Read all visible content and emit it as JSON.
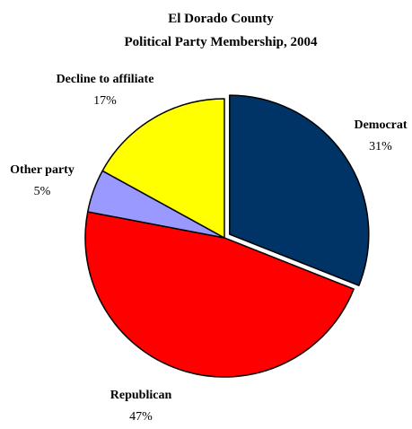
{
  "chart_data": {
    "type": "pie",
    "title": "El Dorado County",
    "subtitle": "Political Party Membership, 2004",
    "slices": [
      {
        "label": "Democrat",
        "value_label": "31%",
        "value": 31,
        "color": "#003366",
        "exploded": true
      },
      {
        "label": "Republican",
        "value_label": "47%",
        "value": 47,
        "color": "#ff0000",
        "exploded": false
      },
      {
        "label": "Other party",
        "value_label": "5%",
        "value": 5,
        "color": "#9999ff",
        "exploded": false
      },
      {
        "label": "Decline to affiliate",
        "value_label": "17%",
        "value": 17,
        "color": "#ffff00",
        "exploded": false
      }
    ],
    "legend": "none"
  }
}
